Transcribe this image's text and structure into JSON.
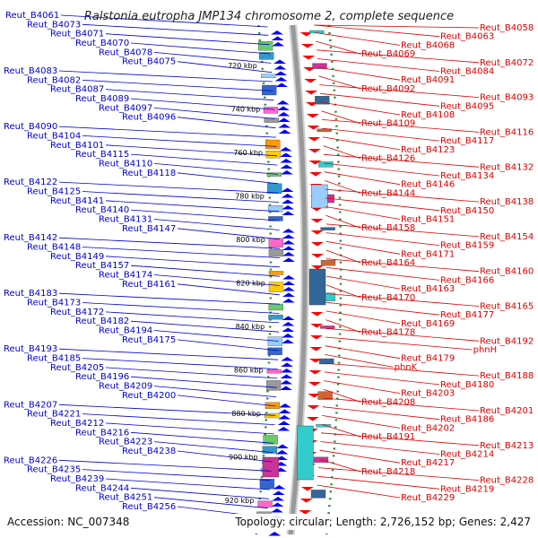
{
  "title": "Ralstonia eutropha JMP134 chromosome 2, complete sequence",
  "accession": "Accession: NC_007348",
  "summary": "Topology: circular; Length: 2,726,152 bp; Genes: 2,427",
  "colors": {
    "left_labels": "#0000cc",
    "right_labels": "#dd0000",
    "backbone": "#999999",
    "dots": "#2e8b2e"
  },
  "kbp_ticks": [
    "720 kbp",
    "740 kbp",
    "760 kbp",
    "780 kbp",
    "800 kbp",
    "820 kbp",
    "840 kbp",
    "860 kbp",
    "880 kbp",
    "900 kbp",
    "920 kbp"
  ],
  "left_genes": [
    "Reut_B4061",
    "Reut_B4073",
    "Reut_B4071",
    "Reut_B4070",
    "Reut_B4078",
    "Reut_B4075",
    "Reut_B4083",
    "Reut_B4082",
    "Reut_B4087",
    "Reut_B4089",
    "Reut_B4097",
    "Reut_B4096",
    "Reut_B4090",
    "Reut_B4104",
    "Reut_B4101",
    "Reut_B4115",
    "Reut_B4110",
    "Reut_B4118",
    "Reut_B4122",
    "Reut_B4125",
    "Reut_B4141",
    "Reut_B4140",
    "Reut_B4131",
    "Reut_B4147",
    "Reut_B4142",
    "Reut_B4148",
    "Reut_B4149",
    "Reut_B4157",
    "Reut_B4174",
    "Reut_B4161",
    "Reut_B4183",
    "Reut_B4173",
    "Reut_B4172",
    "Reut_B4182",
    "Reut_B4194",
    "Reut_B4175",
    "Reut_B4193",
    "Reut_B4185",
    "Reut_B4205",
    "Reut_B4196",
    "Reut_B4209",
    "Reut_B4200",
    "Reut_B4207",
    "Reut_B4221",
    "Reut_B4212",
    "Reut_B4216",
    "Reut_B4223",
    "Reut_B4238",
    "Reut_B4226",
    "Reut_B4235",
    "Reut_B4239",
    "Reut_B4244",
    "Reut_B4251",
    "Reut_B4256"
  ],
  "right_genes": [
    "Reut_B4058",
    "Reut_B4063",
    "Reut_B4068",
    "Reut_B4069",
    "Reut_B4072",
    "Reut_B4084",
    "Reut_B4091",
    "Reut_B4092",
    "Reut_B4093",
    "Reut_B4095",
    "Reut_B4108",
    "Reut_B4109",
    "Reut_B4116",
    "Reut_B4117",
    "Reut_B4123",
    "Reut_B4126",
    "Reut_B4132",
    "Reut_B4134",
    "Reut_B4146",
    "Reut_B4144",
    "Reut_B4138",
    "Reut_B4150",
    "Reut_B4151",
    "Reut_B4158",
    "Reut_B4154",
    "Reut_B4159",
    "Reut_B4171",
    "Reut_B4164",
    "Reut_B4160",
    "Reut_B4166",
    "Reut_B4163",
    "Reut_B4170",
    "Reut_B4165",
    "Reut_B4177",
    "Reut_B4169",
    "Reut_B4178",
    "Reut_B4192",
    "phnH",
    "Reut_B4179",
    "phnK",
    "Reut_B4188",
    "Reut_B4180",
    "Reut_B4203",
    "Reut_B4208",
    "Reut_B4201",
    "Reut_B4186",
    "Reut_B4202",
    "Reut_B4191",
    "Reut_B4213",
    "Reut_B4214",
    "Reut_B4217",
    "Reut_B4218",
    "Reut_B4228",
    "Reut_B4219",
    "Reut_B4229"
  ]
}
